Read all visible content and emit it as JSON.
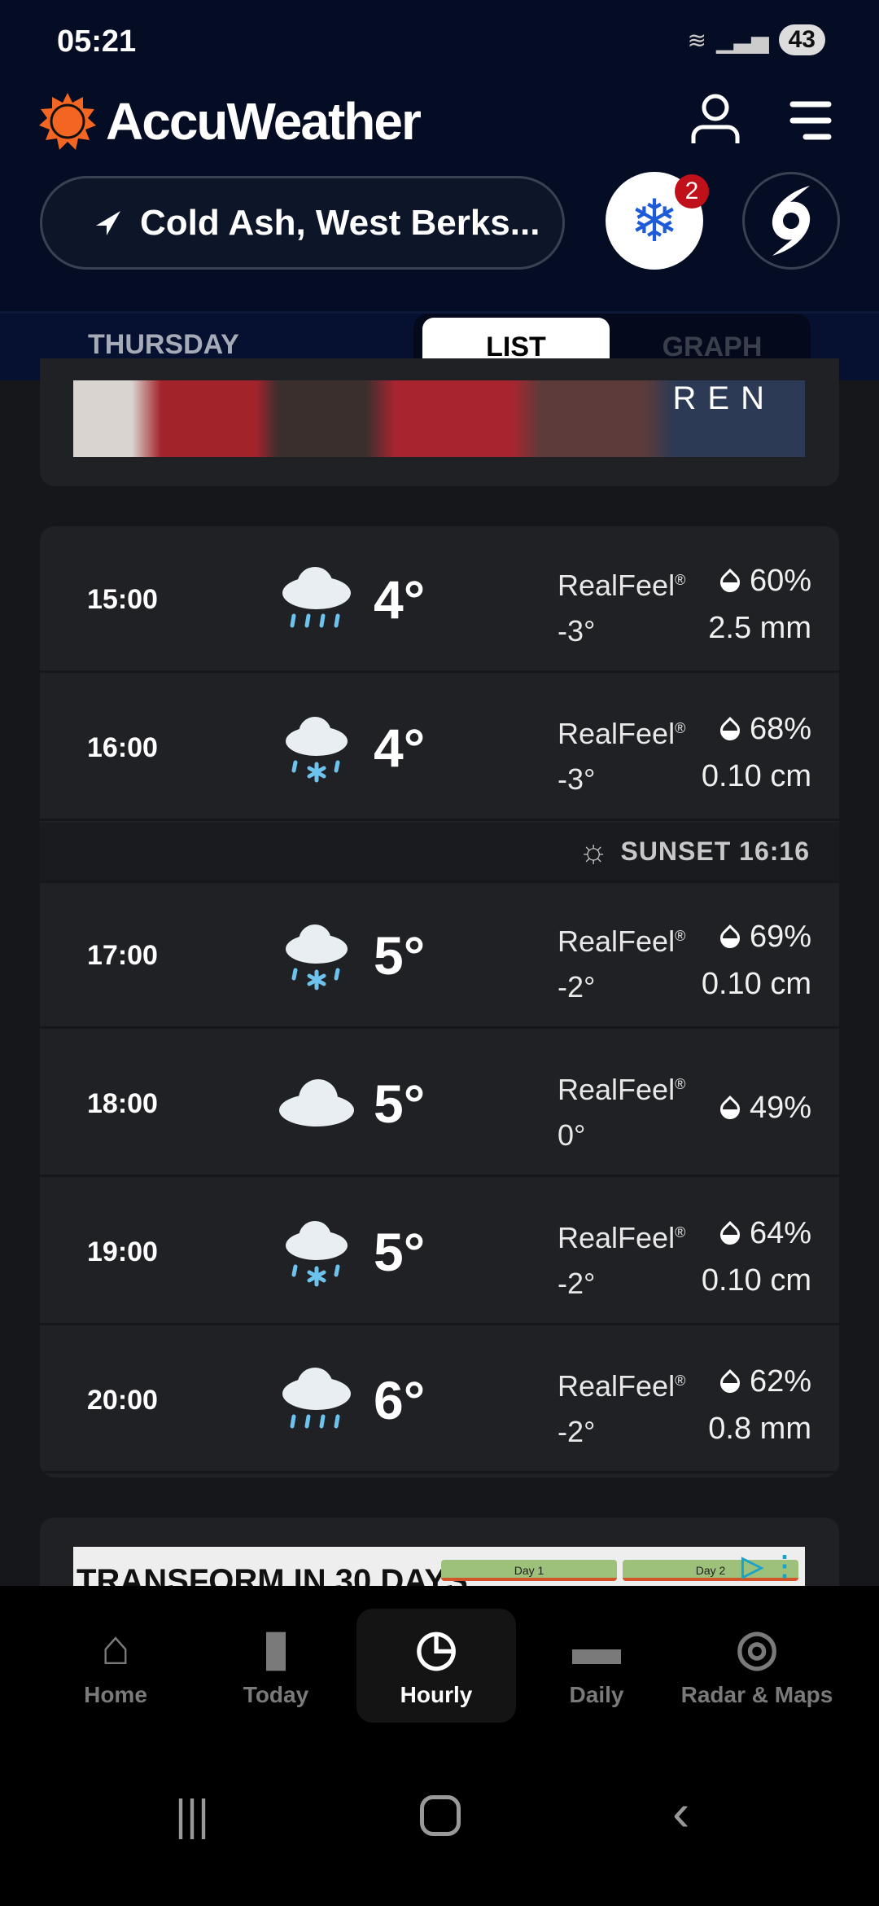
{
  "status_bar": {
    "time": "05:21",
    "battery": "43"
  },
  "header": {
    "brand": "AccuWeather",
    "location": "Cold Ash, West Berks...",
    "alert_count": "2"
  },
  "tabs": {
    "day": "THURSDAY",
    "list": "LIST",
    "graph": "GRAPH"
  },
  "ad_top": {
    "text": "REN"
  },
  "hourly": [
    {
      "time": "15:00",
      "icon": "rain",
      "temp": "4°",
      "realfeel_label": "RealFeel",
      "realfeel": "-3°",
      "precip_prob": "60%",
      "amount": "2.5 mm"
    },
    {
      "time": "16:00",
      "icon": "sleet",
      "temp": "4°",
      "realfeel_label": "RealFeel",
      "realfeel": "-3°",
      "precip_prob": "68%",
      "amount": "0.10 cm"
    },
    {
      "time": "17:00",
      "icon": "sleet",
      "temp": "5°",
      "realfeel_label": "RealFeel",
      "realfeel": "-2°",
      "precip_prob": "69%",
      "amount": "0.10 cm"
    },
    {
      "time": "18:00",
      "icon": "cloud",
      "temp": "5°",
      "realfeel_label": "RealFeel",
      "realfeel": "0°",
      "precip_prob": "49%",
      "amount": ""
    },
    {
      "time": "19:00",
      "icon": "sleet",
      "temp": "5°",
      "realfeel_label": "RealFeel",
      "realfeel": "-2°",
      "precip_prob": "64%",
      "amount": "0.10 cm"
    },
    {
      "time": "20:00",
      "icon": "rain",
      "temp": "6°",
      "realfeel_label": "RealFeel",
      "realfeel": "-2°",
      "precip_prob": "62%",
      "amount": "0.8 mm"
    }
  ],
  "sunset": {
    "label": "SUNSET 16:16"
  },
  "ad_bottom": {
    "headline": "TRANSFORM IN 30 DAYS",
    "day1": "Day 1",
    "day2": "Day 2"
  },
  "nav": [
    {
      "label": "Home"
    },
    {
      "label": "Today"
    },
    {
      "label": "Hourly"
    },
    {
      "label": "Daily"
    },
    {
      "label": "Radar & Maps"
    }
  ],
  "colors": {
    "header_bg": "#050d24",
    "brand_orange": "#f26522",
    "alert_red": "#c0101a",
    "snow_blue": "#1e5bd8"
  }
}
